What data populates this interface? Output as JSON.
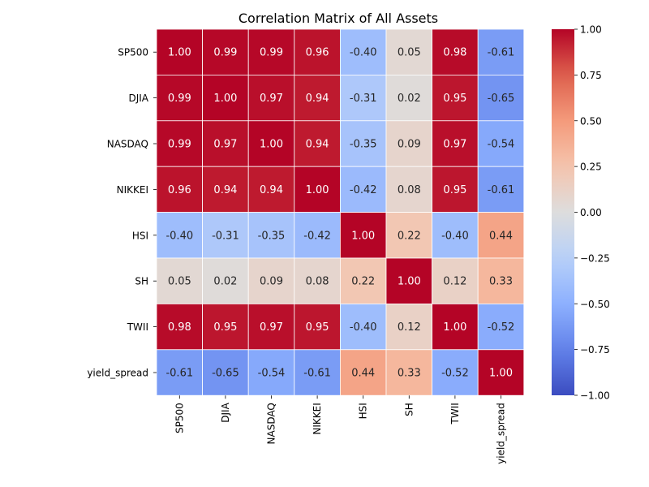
{
  "chart_data": {
    "type": "heatmap",
    "title": "Correlation Matrix of All Assets",
    "row_labels": [
      "SP500",
      "DJIA",
      "NASDAQ",
      "NIKKEI",
      "HSI",
      "SH",
      "TWII",
      "yield_spread"
    ],
    "col_labels": [
      "SP500",
      "DJIA",
      "NASDAQ",
      "NIKKEI",
      "HSI",
      "SH",
      "TWII",
      "yield_spread"
    ],
    "values": [
      [
        1.0,
        0.99,
        0.99,
        0.96,
        -0.4,
        0.05,
        0.98,
        -0.61
      ],
      [
        0.99,
        1.0,
        0.97,
        0.94,
        -0.31,
        0.02,
        0.95,
        -0.65
      ],
      [
        0.99,
        0.97,
        1.0,
        0.94,
        -0.35,
        0.09,
        0.97,
        -0.54
      ],
      [
        0.96,
        0.94,
        0.94,
        1.0,
        -0.42,
        0.08,
        0.95,
        -0.61
      ],
      [
        -0.4,
        -0.31,
        -0.35,
        -0.42,
        1.0,
        0.22,
        -0.4,
        0.44
      ],
      [
        0.05,
        0.02,
        0.09,
        0.08,
        0.22,
        1.0,
        0.12,
        0.33
      ],
      [
        0.98,
        0.95,
        0.97,
        0.95,
        -0.4,
        0.12,
        1.0,
        -0.52
      ],
      [
        -0.61,
        -0.65,
        -0.54,
        -0.61,
        0.44,
        0.33,
        -0.52,
        1.0
      ]
    ],
    "cell_labels": [
      [
        "1.00",
        "0.99",
        "0.99",
        "0.96",
        "-0.40",
        "0.05",
        "0.98",
        "-0.61"
      ],
      [
        "0.99",
        "1.00",
        "0.97",
        "0.94",
        "-0.31",
        "0.02",
        "0.95",
        "-0.65"
      ],
      [
        "0.99",
        "0.97",
        "1.00",
        "0.94",
        "-0.35",
        "0.09",
        "0.97",
        "-0.54"
      ],
      [
        "0.96",
        "0.94",
        "0.94",
        "1.00",
        "-0.42",
        "0.08",
        "0.95",
        "-0.61"
      ],
      [
        "-0.40",
        "-0.31",
        "-0.35",
        "-0.42",
        "1.00",
        "0.22",
        "-0.40",
        "0.44"
      ],
      [
        "0.05",
        "0.02",
        "0.09",
        "0.08",
        "0.22",
        "1.00",
        "0.12",
        "0.33"
      ],
      [
        "0.98",
        "0.95",
        "0.97",
        "0.95",
        "-0.40",
        "0.12",
        "1.00",
        "-0.52"
      ],
      [
        "-0.61",
        "-0.65",
        "-0.54",
        "-0.61",
        "0.44",
        "0.33",
        "-0.52",
        "1.00"
      ]
    ],
    "colormap": "coolwarm",
    "vmin": -1.0,
    "vmax": 1.0,
    "colorbar_ticks": [
      -1.0,
      -0.75,
      -0.5,
      -0.25,
      0.0,
      0.25,
      0.5,
      0.75,
      1.0
    ],
    "colorbar_tick_labels": [
      "−1.00",
      "−0.75",
      "−0.50",
      "−0.25",
      "0.00",
      "0.25",
      "0.50",
      "0.75",
      "1.00"
    ],
    "colors": {
      "cold_end": "#3b4cc0",
      "neutral": "#dddddd",
      "warm_end": "#b40426",
      "cell_border": "#ffffff"
    }
  }
}
